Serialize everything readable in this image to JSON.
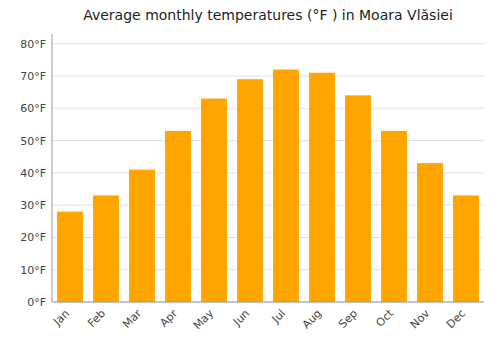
{
  "chart_data": {
    "type": "bar",
    "title": "Average monthly temperatures (°F ) in Moara Vlăsiei",
    "categories": [
      "Jan",
      "Feb",
      "Mar",
      "Apr",
      "May",
      "Jun",
      "Jul",
      "Aug",
      "Sep",
      "Oct",
      "Nov",
      "Dec"
    ],
    "values": [
      28,
      33,
      41,
      53,
      63,
      69,
      72,
      71,
      64,
      53,
      43,
      33
    ],
    "color": "#FFA500",
    "ylim": [
      0,
      83
    ],
    "yticks": [
      {
        "value": 0,
        "label": "0°F"
      },
      {
        "value": 10,
        "label": "10°F"
      },
      {
        "value": 20,
        "label": "20°F"
      },
      {
        "value": 30,
        "label": "30°F"
      },
      {
        "value": 40,
        "label": "40°F"
      },
      {
        "value": 50,
        "label": "50°F"
      },
      {
        "value": 60,
        "label": "60°F"
      },
      {
        "value": 70,
        "label": "70°F"
      },
      {
        "value": 80,
        "label": "80°F"
      }
    ],
    "grid": true
  }
}
